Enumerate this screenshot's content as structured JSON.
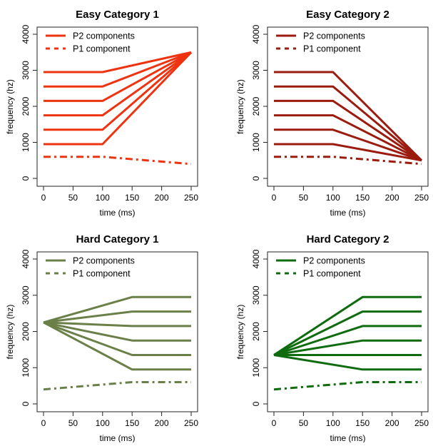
{
  "chart_data": [
    {
      "type": "line",
      "title": "Easy Category 1",
      "xlabel": "time (ms)",
      "ylabel": "frequency (hz)",
      "xlim": [
        0,
        250
      ],
      "ylim": [
        0,
        4000
      ],
      "xticks": [
        0,
        50,
        100,
        150,
        200,
        250
      ],
      "yticks": [
        0,
        1000,
        2000,
        3000,
        4000
      ],
      "legend_position": "top-left",
      "grid": false,
      "color": "#EE3311",
      "series": [
        {
          "name": "P2 components",
          "style": "solid",
          "lines": [
            {
              "x": [
                0,
                100,
                250
              ],
              "y": [
                950,
                950,
                3500
              ]
            },
            {
              "x": [
                0,
                100,
                250
              ],
              "y": [
                1350,
                1350,
                3500
              ]
            },
            {
              "x": [
                0,
                100,
                250
              ],
              "y": [
                1750,
                1750,
                3500
              ]
            },
            {
              "x": [
                0,
                100,
                250
              ],
              "y": [
                2150,
                2150,
                3500
              ]
            },
            {
              "x": [
                0,
                100,
                250
              ],
              "y": [
                2550,
                2550,
                3500
              ]
            },
            {
              "x": [
                0,
                100,
                250
              ],
              "y": [
                2950,
                2950,
                3500
              ]
            }
          ]
        },
        {
          "name": "P1 component",
          "style": "dashed",
          "lines": [
            {
              "x": [
                0,
                100,
                250
              ],
              "y": [
                600,
                600,
                400
              ]
            }
          ]
        }
      ]
    },
    {
      "type": "line",
      "title": "Easy Category 2",
      "xlabel": "time (ms)",
      "ylabel": "frequency (hz)",
      "xlim": [
        0,
        250
      ],
      "ylim": [
        0,
        4000
      ],
      "xticks": [
        0,
        50,
        100,
        150,
        200,
        250
      ],
      "yticks": [
        0,
        1000,
        2000,
        3000,
        4000
      ],
      "legend_position": "top-left",
      "grid": false,
      "color": "#9B1B0E",
      "series": [
        {
          "name": "P2 components",
          "style": "solid",
          "lines": [
            {
              "x": [
                0,
                100,
                250
              ],
              "y": [
                950,
                950,
                500
              ]
            },
            {
              "x": [
                0,
                100,
                250
              ],
              "y": [
                1350,
                1350,
                500
              ]
            },
            {
              "x": [
                0,
                100,
                250
              ],
              "y": [
                1750,
                1750,
                500
              ]
            },
            {
              "x": [
                0,
                100,
                250
              ],
              "y": [
                2150,
                2150,
                500
              ]
            },
            {
              "x": [
                0,
                100,
                250
              ],
              "y": [
                2550,
                2550,
                500
              ]
            },
            {
              "x": [
                0,
                100,
                250
              ],
              "y": [
                2950,
                2950,
                500
              ]
            }
          ]
        },
        {
          "name": "P1 component",
          "style": "dashed",
          "lines": [
            {
              "x": [
                0,
                100,
                250
              ],
              "y": [
                600,
                600,
                400
              ]
            }
          ]
        }
      ]
    },
    {
      "type": "line",
      "title": "Hard Category 1",
      "xlabel": "time (ms)",
      "ylabel": "frequency (hz)",
      "xlim": [
        0,
        250
      ],
      "ylim": [
        0,
        4000
      ],
      "xticks": [
        0,
        50,
        100,
        150,
        200,
        250
      ],
      "yticks": [
        0,
        1000,
        2000,
        3000,
        4000
      ],
      "legend_position": "top-left",
      "grid": false,
      "color": "#6B7F48",
      "series": [
        {
          "name": "P2 components",
          "style": "solid",
          "lines": [
            {
              "x": [
                0,
                150,
                250
              ],
              "y": [
                2250,
                950,
                950
              ]
            },
            {
              "x": [
                0,
                150,
                250
              ],
              "y": [
                2250,
                1350,
                1350
              ]
            },
            {
              "x": [
                0,
                150,
                250
              ],
              "y": [
                2250,
                1750,
                1750
              ]
            },
            {
              "x": [
                0,
                150,
                250
              ],
              "y": [
                2250,
                2150,
                2150
              ]
            },
            {
              "x": [
                0,
                150,
                250
              ],
              "y": [
                2250,
                2550,
                2550
              ]
            },
            {
              "x": [
                0,
                150,
                250
              ],
              "y": [
                2250,
                2950,
                2950
              ]
            }
          ]
        },
        {
          "name": "P1 component",
          "style": "dashed",
          "lines": [
            {
              "x": [
                0,
                150,
                250
              ],
              "y": [
                400,
                600,
                600
              ]
            }
          ]
        }
      ]
    },
    {
      "type": "line",
      "title": "Hard Category 2",
      "xlabel": "time (ms)",
      "ylabel": "frequency (hz)",
      "xlim": [
        0,
        250
      ],
      "ylim": [
        0,
        4000
      ],
      "xticks": [
        0,
        50,
        100,
        150,
        200,
        250
      ],
      "yticks": [
        0,
        1000,
        2000,
        3000,
        4000
      ],
      "legend_position": "top-left",
      "grid": false,
      "color": "#0E6B0E",
      "series": [
        {
          "name": "P2 components",
          "style": "solid",
          "lines": [
            {
              "x": [
                0,
                150,
                250
              ],
              "y": [
                1350,
                950,
                950
              ]
            },
            {
              "x": [
                0,
                150,
                250
              ],
              "y": [
                1350,
                1350,
                1350
              ]
            },
            {
              "x": [
                0,
                150,
                250
              ],
              "y": [
                1350,
                1750,
                1750
              ]
            },
            {
              "x": [
                0,
                150,
                250
              ],
              "y": [
                1350,
                2150,
                2150
              ]
            },
            {
              "x": [
                0,
                150,
                250
              ],
              "y": [
                1350,
                2550,
                2550
              ]
            },
            {
              "x": [
                0,
                150,
                250
              ],
              "y": [
                1350,
                2950,
                2950
              ]
            }
          ]
        },
        {
          "name": "P1 component",
          "style": "dashed",
          "lines": [
            {
              "x": [
                0,
                150,
                250
              ],
              "y": [
                400,
                600,
                600
              ]
            }
          ]
        }
      ]
    }
  ]
}
